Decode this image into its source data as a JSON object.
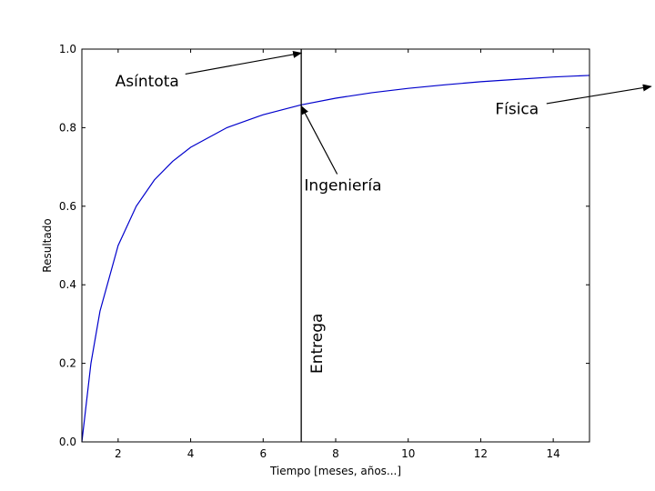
{
  "chart_data": {
    "type": "line",
    "title": "",
    "xlabel": "Tiempo [meses, años...]",
    "ylabel": "Resultado",
    "xlim": [
      1,
      15
    ],
    "ylim": [
      0,
      1.0
    ],
    "x_ticks": [
      2,
      4,
      6,
      8,
      10,
      12,
      14
    ],
    "y_ticks": [
      0.0,
      0.2,
      0.4,
      0.6,
      0.8,
      1.0
    ],
    "x_tick_labels": [
      "2",
      "4",
      "6",
      "8",
      "10",
      "12",
      "14"
    ],
    "y_tick_labels": [
      "0.0",
      "0.2",
      "0.4",
      "0.6",
      "0.8",
      "1.0"
    ],
    "grid": false,
    "series": [
      {
        "color": "#0000cc",
        "x": [
          1,
          1.25,
          1.5,
          2,
          2.5,
          3,
          3.5,
          4,
          5,
          6,
          7,
          7.05,
          8,
          9,
          10,
          11,
          12,
          13,
          14,
          15
        ],
        "y": [
          0.0,
          0.2,
          0.333,
          0.5,
          0.6,
          0.667,
          0.714,
          0.75,
          0.8,
          0.833,
          0.857,
          0.858,
          0.875,
          0.889,
          0.9,
          0.909,
          0.917,
          0.923,
          0.929,
          0.933
        ]
      }
    ],
    "vertical_line": {
      "x": 7.05,
      "color": "#000000",
      "label": "Entrega"
    },
    "annotations": [
      {
        "text": "Asíntota",
        "text_x": 2.8,
        "text_y": 0.905,
        "point_x": 7.05,
        "point_y": 0.99
      },
      {
        "text": "Ingeniería",
        "text_x": 8.2,
        "text_y": 0.64,
        "point_x": 7.05,
        "point_y": 0.855
      },
      {
        "text": "Física",
        "text_x": 13.0,
        "text_y": 0.835,
        "point_x": 16.7,
        "point_y": 0.905
      }
    ]
  }
}
